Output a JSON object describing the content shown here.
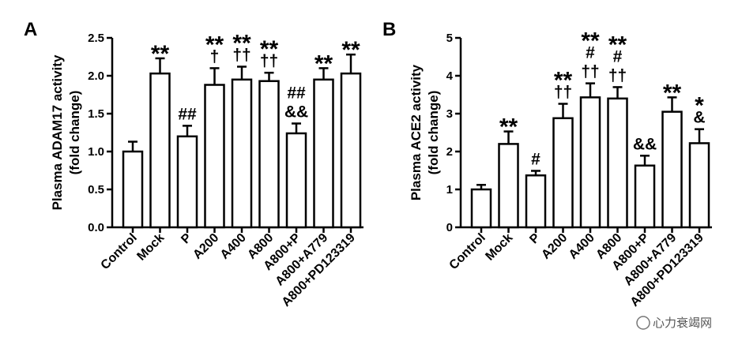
{
  "chart_data": [
    {
      "type": "bar",
      "panel": "A",
      "ylabel_line1": "Plasma ADAM17 activity",
      "ylabel_line2": "(fold change)",
      "ylim": [
        0,
        2.5
      ],
      "yticks": [
        "0.0",
        "0.5",
        "1.0",
        "1.5",
        "2.0",
        "2.5"
      ],
      "categories": [
        "Control",
        "Mock",
        "P",
        "A200",
        "A400",
        "A800",
        "A800+P",
        "A800+A779",
        "A800+PD123319"
      ],
      "values": [
        1.0,
        2.03,
        1.2,
        1.88,
        1.95,
        1.93,
        1.24,
        1.95,
        2.03
      ],
      "errors": [
        0.13,
        0.2,
        0.14,
        0.22,
        0.17,
        0.11,
        0.13,
        0.15,
        0.25
      ],
      "annotations": [
        [],
        [
          "**"
        ],
        [
          "##"
        ],
        [
          "**",
          "†"
        ],
        [
          "**",
          "††"
        ],
        [
          "**",
          "††"
        ],
        [
          "##",
          "&&"
        ],
        [
          "**"
        ],
        [
          "**"
        ]
      ]
    },
    {
      "type": "bar",
      "panel": "B",
      "ylabel_line1": "Plasma ACE2 activity",
      "ylabel_line2": "(fold change)",
      "ylim": [
        0,
        5
      ],
      "yticks": [
        "0",
        "1",
        "2",
        "3",
        "4",
        "5"
      ],
      "categories": [
        "Control",
        "Mock",
        "P",
        "A200",
        "A400",
        "A800",
        "A800+P",
        "A800+A779",
        "A800+PD123319"
      ],
      "values": [
        1.0,
        2.2,
        1.37,
        2.88,
        3.43,
        3.4,
        1.63,
        3.05,
        2.22
      ],
      "errors": [
        0.12,
        0.33,
        0.12,
        0.38,
        0.37,
        0.3,
        0.26,
        0.38,
        0.37
      ],
      "annotations": [
        [],
        [
          "**"
        ],
        [
          "#"
        ],
        [
          "**",
          "††"
        ],
        [
          "**",
          "#",
          "††"
        ],
        [
          "**",
          "#",
          "††"
        ],
        [
          "&&"
        ],
        [
          "**"
        ],
        [
          "*",
          "&"
        ]
      ]
    }
  ],
  "watermark": "心力衰竭网"
}
